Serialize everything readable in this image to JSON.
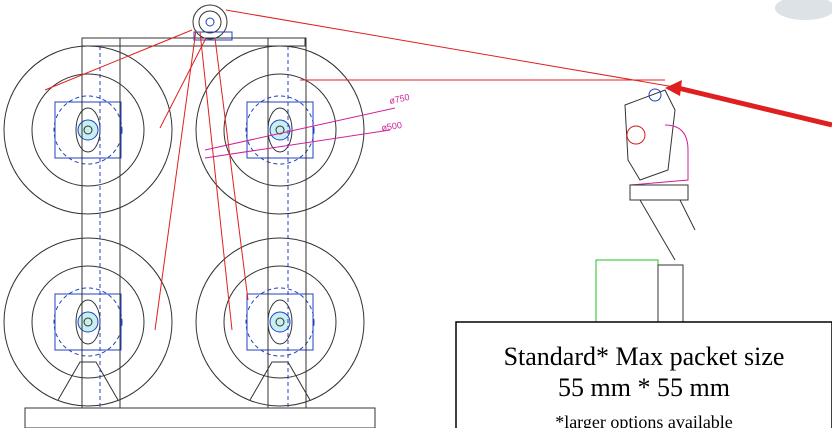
{
  "dimensions": {
    "outer": "ø750",
    "inner": "ø500"
  },
  "note": {
    "line1": "Standard* Max packet size",
    "line2": "55 mm * 55 mm",
    "line3": "*larger options available"
  }
}
